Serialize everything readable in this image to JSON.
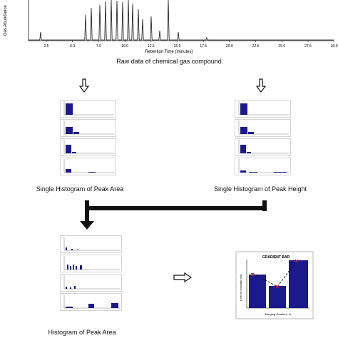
{
  "chromatogram": {
    "y_axis_label": "Gas Abundance",
    "x_axis_label": "Retention Time (minutes)",
    "x_ticks": [
      "2.5",
      "5.0",
      "7.5",
      "10.0",
      "12.5",
      "15.0",
      "17.5",
      "20.0",
      "22.5",
      "25.0",
      "27.5",
      "30.0"
    ],
    "caption": "Raw data of chemical gas compound"
  },
  "panels": {
    "left_caption": "Single Histogram of Peak Area",
    "right_caption": "Single Histogram of Peak Height",
    "bottom_caption": "Histogram of Peak Area",
    "result_title": "GRADIENT BAR",
    "result_xlabel": "Merging Gradient, %",
    "result_ylabel": "Level of compatible (Hz)"
  },
  "colors": {
    "bar": "#1a1a8c",
    "line": "#111111",
    "marker": "#cc2222"
  },
  "icons": {
    "down_arrow": "hollow-down-arrow-icon",
    "right_arrow": "hollow-right-arrow-icon"
  }
}
